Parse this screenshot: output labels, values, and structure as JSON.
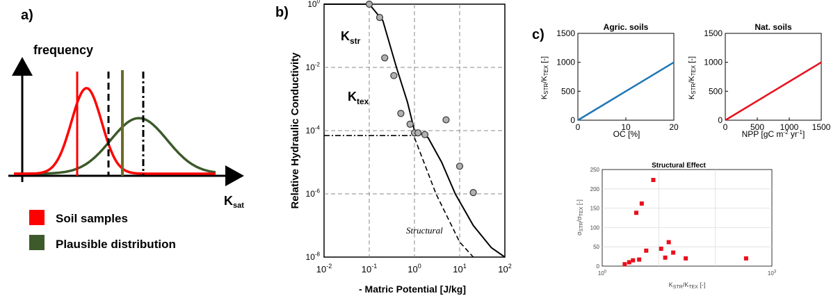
{
  "panels": {
    "a": {
      "label": "a)",
      "y_axis_label": "frequency",
      "x_axis_label": "K",
      "x_axis_sub": "sat",
      "legend": [
        {
          "label": "Soil samples",
          "color": "#ff0000"
        },
        {
          "label": "Plausible distribution",
          "color": "#3d5a2a"
        }
      ]
    },
    "b": {
      "label": "b)",
      "ylabel": "Relative Hydraulic Conductivity",
      "xlabel": "- Matric Potential [J/kg]",
      "annot_kstr": "K",
      "annot_kstr_sub": "str",
      "annot_ktex": "K",
      "annot_ktex_sub": "tex",
      "annot_structural": "Structural"
    },
    "c": {
      "label": "c)",
      "agric_title": "Agric. soils",
      "nat_title": "Nat. soils",
      "structural_title": "Structural Effect"
    }
  },
  "chart_data": [
    {
      "id": "a",
      "type": "line",
      "series": [
        {
          "name": "Soil samples",
          "color": "#ff0000",
          "mean": 0.36,
          "sd": 0.075,
          "peak": 0.77
        },
        {
          "name": "Plausible distribution",
          "color": "#3d5a2a",
          "mean": 0.62,
          "sd": 0.14,
          "peak": 0.5,
          "vlines": [
            0.46,
            0.62,
            0.78
          ]
        }
      ]
    },
    {
      "id": "b",
      "type": "line",
      "xscale": "log",
      "yscale": "log",
      "xlim": [
        0.01,
        100
      ],
      "ylim": [
        1e-08,
        1
      ],
      "xticks": [
        "10-2",
        "10-1",
        "100",
        "101",
        "102"
      ],
      "yticks": [
        "100",
        "10-2",
        "10-4",
        "10-6",
        "10-8"
      ],
      "points": [
        {
          "x": 0.1,
          "y": 1.0
        },
        {
          "x": 0.17,
          "y": 0.38
        },
        {
          "x": 0.22,
          "y": 0.02
        },
        {
          "x": 0.35,
          "y": 0.0055
        },
        {
          "x": 0.5,
          "y": 0.00035
        },
        {
          "x": 0.8,
          "y": 0.00016
        },
        {
          "x": 1.0,
          "y": 8.5e-05
        },
        {
          "x": 1.2,
          "y": 8.5e-05
        },
        {
          "x": 1.7,
          "y": 7.5e-05
        },
        {
          "x": 5.0,
          "y": 0.00022
        },
        {
          "x": 10.0,
          "y": 7.5e-06
        },
        {
          "x": 20.0,
          "y": 1.1e-06
        }
      ],
      "ktex_level": 7e-05,
      "fit_line": [
        [
          0.01,
          1
        ],
        [
          0.1,
          1
        ],
        [
          0.2,
          0.3
        ],
        [
          0.4,
          0.01
        ],
        [
          0.7,
          0.0008
        ],
        [
          1.0,
          0.0001
        ],
        [
          2.0,
          6e-05
        ],
        [
          4.0,
          1e-05
        ],
        [
          8.0,
          1e-06
        ],
        [
          20.0,
          1e-07
        ],
        [
          50.0,
          2e-08
        ],
        [
          100.0,
          1e-08
        ]
      ],
      "structural_line": [
        [
          1.0,
          6e-05
        ],
        [
          3.0,
          1e-06
        ],
        [
          10.0,
          3e-08
        ],
        [
          20.0,
          1e-08
        ]
      ]
    },
    {
      "id": "c-agric",
      "type": "line",
      "title": "Agric. soils",
      "xlabel": "OC [%]",
      "ylabel": "KSTR/KTEX [-]",
      "xlim": [
        0,
        20
      ],
      "ylim": [
        0,
        1500
      ],
      "xticks": [
        0,
        10,
        20
      ],
      "yticks": [
        0,
        500,
        1000,
        1500
      ],
      "ytick_labels": [
        "0",
        "500",
        "1000",
        "1500"
      ],
      "series": [
        {
          "color": "#1f77b4",
          "x": [
            0,
            20
          ],
          "y": [
            0,
            1000
          ]
        }
      ]
    },
    {
      "id": "c-nat",
      "type": "line",
      "title": "Nat. soils",
      "xlabel": "NPP [gC m-2 yr-1]",
      "ylabel": "KSTR/KTEX [-]",
      "xlim": [
        0,
        1500
      ],
      "ylim": [
        0,
        1500
      ],
      "xticks": [
        0,
        500,
        1000,
        1500
      ],
      "yticks": [
        0,
        500,
        1000,
        1500
      ],
      "ytick_labels": [
        "0",
        "500",
        "1000",
        "1500"
      ],
      "series": [
        {
          "color": "#e8101c",
          "x": [
            0,
            1500
          ],
          "y": [
            0,
            1000
          ]
        }
      ]
    },
    {
      "id": "c-structural",
      "type": "scatter",
      "title": "Structural Effect",
      "xlabel": "KSTR/KTEX [-]",
      "ylabel": "σSTR/σTEX [-]",
      "xscale": "log",
      "xlim": [
        1,
        1000
      ],
      "ylim": [
        0,
        250
      ],
      "xticks": [
        "100",
        "103"
      ],
      "yticks": [
        0,
        50,
        100,
        150,
        200,
        250
      ],
      "color": "#e8101c",
      "points": [
        {
          "x": 2.5,
          "y": 5
        },
        {
          "x": 3.0,
          "y": 10
        },
        {
          "x": 3.5,
          "y": 15
        },
        {
          "x": 4.0,
          "y": 138
        },
        {
          "x": 4.5,
          "y": 17
        },
        {
          "x": 5.0,
          "y": 162
        },
        {
          "x": 6.0,
          "y": 40
        },
        {
          "x": 8.0,
          "y": 223
        },
        {
          "x": 11.0,
          "y": 45
        },
        {
          "x": 13.0,
          "y": 22
        },
        {
          "x": 15.0,
          "y": 62
        },
        {
          "x": 18.0,
          "y": 35
        },
        {
          "x": 30.0,
          "y": 20
        },
        {
          "x": 350.0,
          "y": 20
        }
      ]
    }
  ]
}
